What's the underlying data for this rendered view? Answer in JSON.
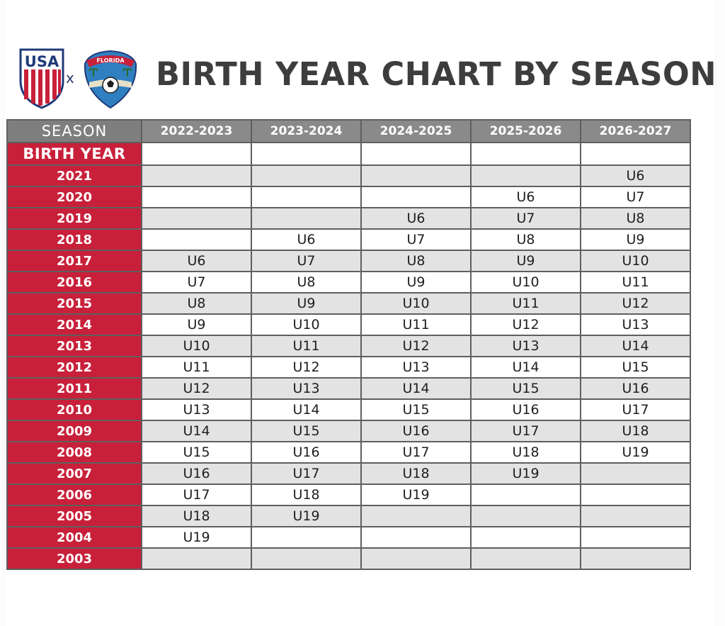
{
  "header": {
    "title": "BIRTH YEAR CHART BY SEASON",
    "logo_left_text": "USA",
    "logo_separator": "x",
    "logo_right_text": "FLORIDA"
  },
  "colors": {
    "red": "#c8203a",
    "header_gray": "#8a8a8a",
    "shade_gray": "#e3e3e3",
    "title_gray": "#3d3d3d",
    "navy": "#1f3a78"
  },
  "table": {
    "season_label": "SEASON",
    "birth_year_label": "BIRTH YEAR",
    "seasons": [
      "2022-2023",
      "2023-2024",
      "2024-2025",
      "2025-2026",
      "2026-2027"
    ],
    "rows": [
      {
        "year": "2021",
        "cells": [
          "",
          "",
          "",
          "",
          "U6"
        ]
      },
      {
        "year": "2020",
        "cells": [
          "",
          "",
          "",
          "U6",
          "U7"
        ]
      },
      {
        "year": "2019",
        "cells": [
          "",
          "",
          "U6",
          "U7",
          "U8"
        ]
      },
      {
        "year": "2018",
        "cells": [
          "",
          "U6",
          "U7",
          "U8",
          "U9"
        ]
      },
      {
        "year": "2017",
        "cells": [
          "U6",
          "U7",
          "U8",
          "U9",
          "U10"
        ]
      },
      {
        "year": "2016",
        "cells": [
          "U7",
          "U8",
          "U9",
          "U10",
          "U11"
        ]
      },
      {
        "year": "2015",
        "cells": [
          "U8",
          "U9",
          "U10",
          "U11",
          "U12"
        ]
      },
      {
        "year": "2014",
        "cells": [
          "U9",
          "U10",
          "U11",
          "U12",
          "U13"
        ]
      },
      {
        "year": "2013",
        "cells": [
          "U10",
          "U11",
          "U12",
          "U13",
          "U14"
        ]
      },
      {
        "year": "2012",
        "cells": [
          "U11",
          "U12",
          "U13",
          "U14",
          "U15"
        ]
      },
      {
        "year": "2011",
        "cells": [
          "U12",
          "U13",
          "U14",
          "U15",
          "U16"
        ]
      },
      {
        "year": "2010",
        "cells": [
          "U13",
          "U14",
          "U15",
          "U16",
          "U17"
        ]
      },
      {
        "year": "2009",
        "cells": [
          "U14",
          "U15",
          "U16",
          "U17",
          "U18"
        ]
      },
      {
        "year": "2008",
        "cells": [
          "U15",
          "U16",
          "U17",
          "U18",
          "U19"
        ]
      },
      {
        "year": "2007",
        "cells": [
          "U16",
          "U17",
          "U18",
          "U19",
          ""
        ]
      },
      {
        "year": "2006",
        "cells": [
          "U17",
          "U18",
          "U19",
          "",
          ""
        ]
      },
      {
        "year": "2005",
        "cells": [
          "U18",
          "U19",
          "",
          "",
          ""
        ]
      },
      {
        "year": "2004",
        "cells": [
          "U19",
          "",
          "",
          "",
          ""
        ]
      },
      {
        "year": "2003",
        "cells": [
          "",
          "",
          "",
          "",
          ""
        ]
      }
    ]
  }
}
